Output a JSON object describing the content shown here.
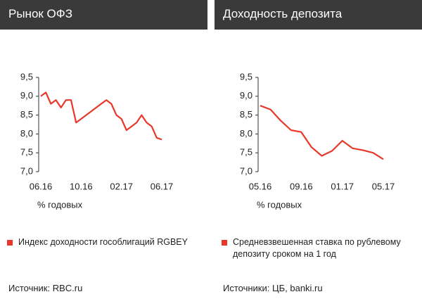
{
  "chart_data": [
    {
      "type": "line",
      "title": "Рынок ОФЗ",
      "y_label": "% годовых",
      "categories": [
        "06.16",
        null,
        null,
        null,
        null,
        null,
        null,
        null,
        "10.16",
        null,
        null,
        null,
        null,
        null,
        null,
        null,
        "02.17",
        null,
        null,
        null,
        null,
        null,
        null,
        null,
        "06.17"
      ],
      "series": [
        {
          "name": "Индекс доходности гособлигаций RGBEY",
          "color": "#e8382a",
          "values": [
            9.0,
            9.1,
            8.8,
            8.9,
            8.7,
            8.9,
            8.9,
            8.3,
            8.4,
            8.5,
            8.6,
            8.7,
            8.8,
            8.9,
            8.8,
            8.5,
            8.4,
            8.1,
            8.2,
            8.3,
            8.5,
            8.3,
            8.2,
            7.9,
            7.85
          ]
        }
      ],
      "ylim": [
        7.0,
        9.5
      ],
      "yticks": [
        {
          "value": 7.0,
          "label": "7,0"
        },
        {
          "value": 7.5,
          "label": "7,5"
        },
        {
          "value": 8.0,
          "label": "8,0"
        },
        {
          "value": 8.5,
          "label": "8,5"
        },
        {
          "value": 9.0,
          "label": "9,0"
        },
        {
          "value": 9.5,
          "label": "9,5"
        }
      ],
      "source": "Источник: RBC.ru"
    },
    {
      "type": "line",
      "title": "Доходность депозита",
      "y_label": "% годовых",
      "categories": [
        "05.16",
        null,
        null,
        null,
        "09.16",
        null,
        null,
        null,
        "01.17",
        null,
        null,
        null,
        "05.17"
      ],
      "series": [
        {
          "name": "Средневзвешенная ставка по рублевому депозиту сроком на 1 год",
          "color": "#e8382a",
          "values": [
            8.75,
            8.65,
            8.35,
            8.1,
            8.05,
            7.65,
            7.42,
            7.55,
            7.82,
            7.62,
            7.57,
            7.5,
            7.33
          ]
        }
      ],
      "ylim": [
        7.0,
        9.5
      ],
      "yticks": [
        {
          "value": 7.0,
          "label": "7,0"
        },
        {
          "value": 7.5,
          "label": "7,5"
        },
        {
          "value": 8.0,
          "label": "8,0"
        },
        {
          "value": 8.5,
          "label": "8,5"
        },
        {
          "value": 9.0,
          "label": "9,0"
        },
        {
          "value": 9.5,
          "label": "9,5"
        }
      ],
      "source": "Источники: ЦБ, banki.ru"
    }
  ]
}
